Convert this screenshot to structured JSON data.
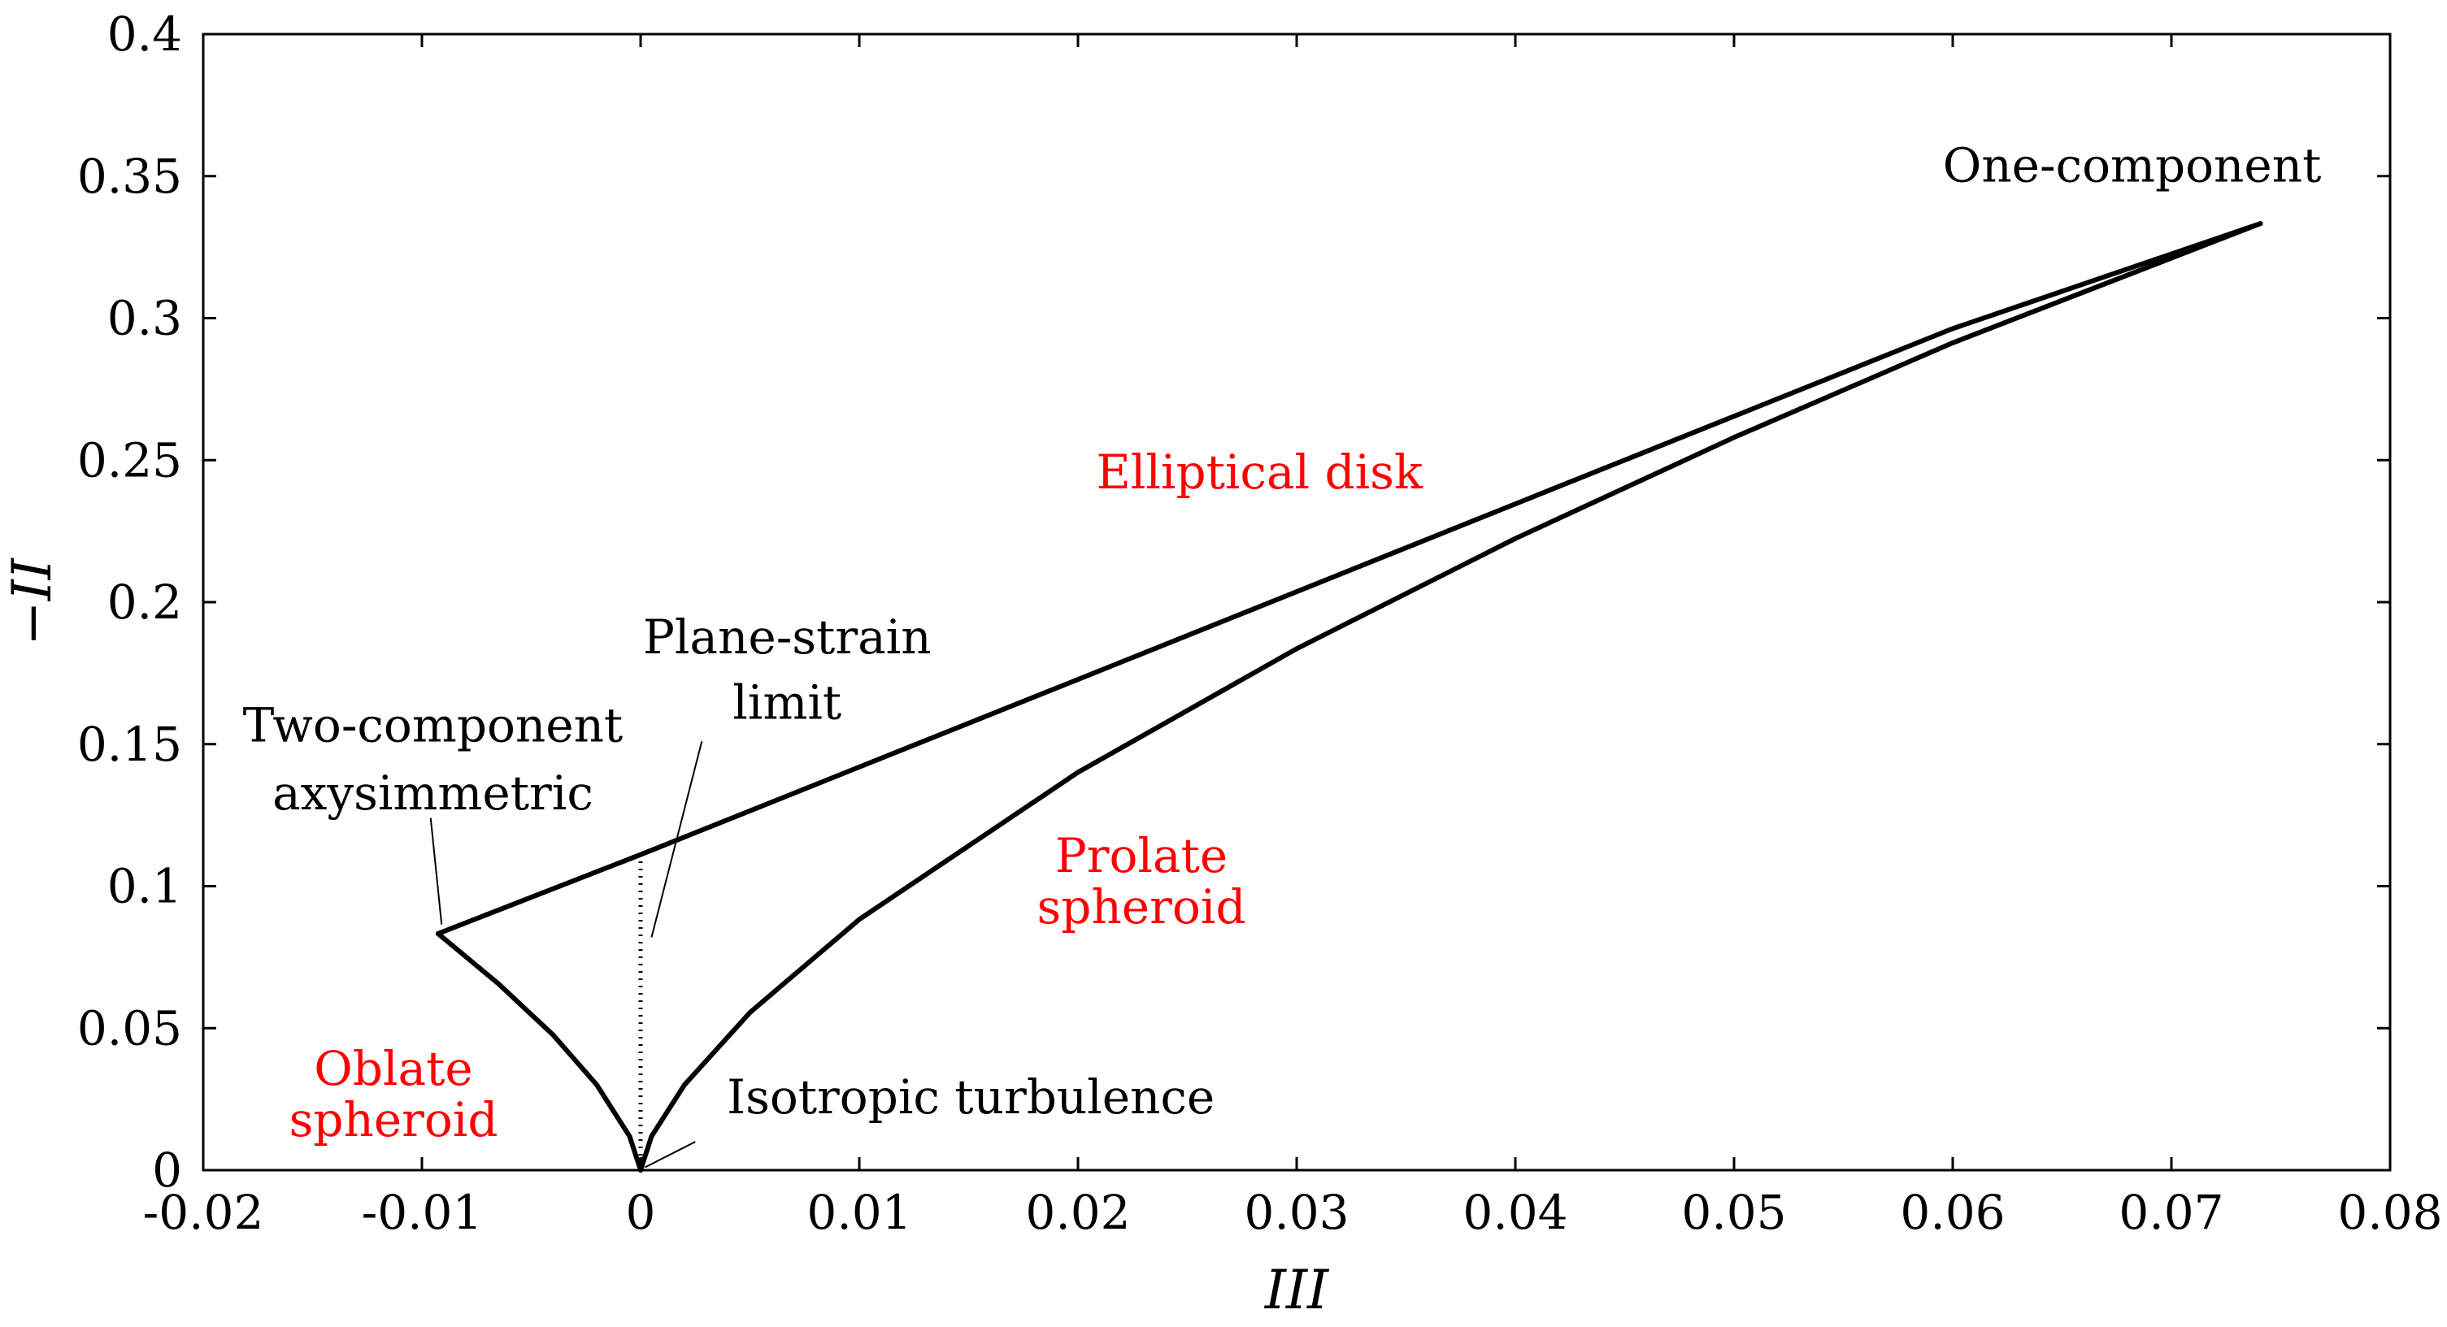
{
  "chart_data": {
    "type": "line",
    "title": "",
    "xlabel": "III",
    "ylabel": "−II",
    "xlim": [
      -0.02,
      0.08
    ],
    "ylim": [
      0,
      0.4
    ],
    "grid": false,
    "x_tick_labels": [
      "-0.02",
      "-0.01",
      "0",
      "0.01",
      "0.02",
      "0.03",
      "0.04",
      "0.05",
      "0.06",
      "0.07",
      "0.08"
    ],
    "y_tick_labels": [
      "0",
      "0.05",
      "0.1",
      "0.15",
      "0.2",
      "0.25",
      "0.3",
      "0.35",
      "0.4"
    ],
    "series": [
      {
        "kind": "boundary",
        "style": "solid",
        "points": [
          [
            -0.00926,
            0.0833
          ],
          [
            0.0,
            0.1111
          ],
          [
            0.02,
            0.1728
          ],
          [
            0.04,
            0.2346
          ],
          [
            0.06,
            0.2963
          ],
          [
            0.07407,
            0.3333
          ]
        ]
      },
      {
        "kind": "boundary",
        "style": "solid",
        "points": [
          [
            -0.00926,
            0.0833
          ],
          [
            -0.0065,
            0.0656
          ],
          [
            -0.004,
            0.0476
          ],
          [
            -0.002,
            0.03
          ],
          [
            -0.0005,
            0.0119
          ],
          [
            0.0,
            0.0
          ]
        ]
      },
      {
        "kind": "boundary",
        "style": "solid",
        "points": [
          [
            0.0,
            0.0
          ],
          [
            0.0005,
            0.0119
          ],
          [
            0.002,
            0.03
          ],
          [
            0.005,
            0.0555
          ],
          [
            0.01,
            0.0883
          ],
          [
            0.02,
            0.1401
          ],
          [
            0.03,
            0.1836
          ],
          [
            0.04,
            0.2224
          ],
          [
            0.05,
            0.258
          ],
          [
            0.06,
            0.2913
          ],
          [
            0.07407,
            0.3333
          ]
        ]
      },
      {
        "kind": "plane-strain",
        "style": "dotted",
        "points": [
          [
            0.0,
            0.0
          ],
          [
            0.0,
            0.1111
          ]
        ]
      }
    ],
    "annotations": [
      {
        "text": "One-component",
        "x": 0.0682,
        "y": 0.348,
        "color": "#000000"
      },
      {
        "text": "Elliptical disk",
        "x": 0.0283,
        "y": 0.24,
        "color": "#ff0000"
      },
      {
        "text": "Plane-strain",
        "x": 0.0067,
        "y": 0.182,
        "color": "#000000"
      },
      {
        "text": "limit",
        "x": 0.0067,
        "y": 0.159,
        "color": "#000000"
      },
      {
        "text": "Two-component",
        "x": -0.0095,
        "y": 0.151,
        "color": "#000000"
      },
      {
        "text": "axysimmetric",
        "x": -0.0095,
        "y": 0.127,
        "color": "#000000"
      },
      {
        "text": "Prolate",
        "x": 0.0229,
        "y": 0.105,
        "color": "#ff0000"
      },
      {
        "text": "spheroid",
        "x": 0.0229,
        "y": 0.087,
        "color": "#ff0000"
      },
      {
        "text": "Oblate",
        "x": -0.0113,
        "y": 0.03,
        "color": "#ff0000"
      },
      {
        "text": "spheroid",
        "x": -0.0113,
        "y": 0.012,
        "color": "#ff0000"
      },
      {
        "text": "Isotropic turbulence",
        "x": 0.0151,
        "y": 0.02,
        "color": "#000000"
      }
    ],
    "leader_lines": [
      {
        "from": [
          -0.0096,
          0.124
        ],
        "to": [
          -0.0091,
          0.0865
        ]
      },
      {
        "from": [
          0.0028,
          0.151
        ],
        "to": [
          0.0005,
          0.082
        ]
      },
      {
        "from": [
          0.0025,
          0.01
        ],
        "to": [
          0.0002,
          0.001
        ]
      }
    ]
  }
}
